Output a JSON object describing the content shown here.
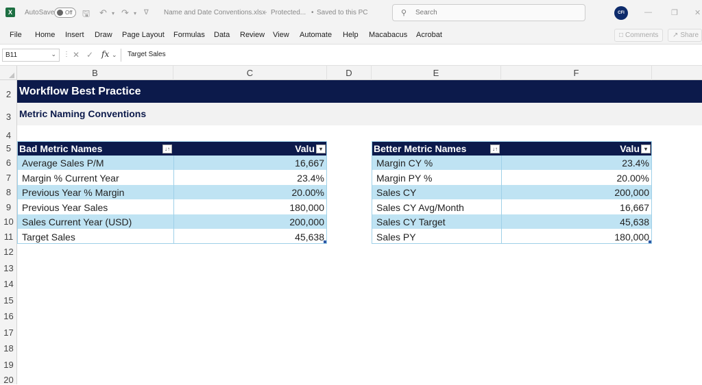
{
  "titlebar": {
    "app_logo": "X",
    "autosave_label": "AutoSave",
    "autosave_state": "Off",
    "file_name": "Name and Date Conventions.xlsx",
    "protected_label": "Protected...",
    "saved_status": "Saved to this PC",
    "search_placeholder": "Search",
    "avatar_text": "CFI"
  },
  "menu": {
    "items": [
      "File",
      "Home",
      "Insert",
      "Draw",
      "Page Layout",
      "Formulas",
      "Data",
      "Review",
      "View",
      "Automate",
      "Help",
      "Macabacus",
      "Acrobat"
    ],
    "comments_label": "Comments",
    "share_label": "Share"
  },
  "formula_bar": {
    "name_box": "B11",
    "fx_label": "fx",
    "content": "Target Sales"
  },
  "columns": [
    "B",
    "C",
    "D",
    "E",
    "F"
  ],
  "rows": [
    "2",
    "3",
    "4",
    "5",
    "6",
    "7",
    "8",
    "9",
    "10",
    "11",
    "12",
    "13",
    "14",
    "15",
    "16",
    "17",
    "18",
    "19",
    "20"
  ],
  "sheet": {
    "title": "Workflow Best Practice",
    "subtitle": "Metric Naming Conventions"
  },
  "bad_table": {
    "header_name": "Bad Metric Names",
    "header_value": "Valu",
    "rows": [
      {
        "name": "Average Sales P/M",
        "value": "16,667"
      },
      {
        "name": "Margin % Current Year",
        "value": "23.4%"
      },
      {
        "name": "Previous Year % Margin",
        "value": "20.00%"
      },
      {
        "name": "Previous Year Sales",
        "value": "180,000"
      },
      {
        "name": "Sales Current Year (USD)",
        "value": "200,000"
      },
      {
        "name": "Target Sales",
        "value": "45,638"
      }
    ]
  },
  "better_table": {
    "header_name": "Better Metric Names",
    "header_value": "Valu",
    "rows": [
      {
        "name": "Margin CY %",
        "value": "23.4%"
      },
      {
        "name": "Margin PY %",
        "value": "20.00%"
      },
      {
        "name": "Sales CY",
        "value": "200,000"
      },
      {
        "name": "Sales CY Avg/Month",
        "value": "16,667"
      },
      {
        "name": "Sales CY Target",
        "value": "45,638"
      },
      {
        "name": "Sales PY",
        "value": "180,000"
      }
    ]
  }
}
